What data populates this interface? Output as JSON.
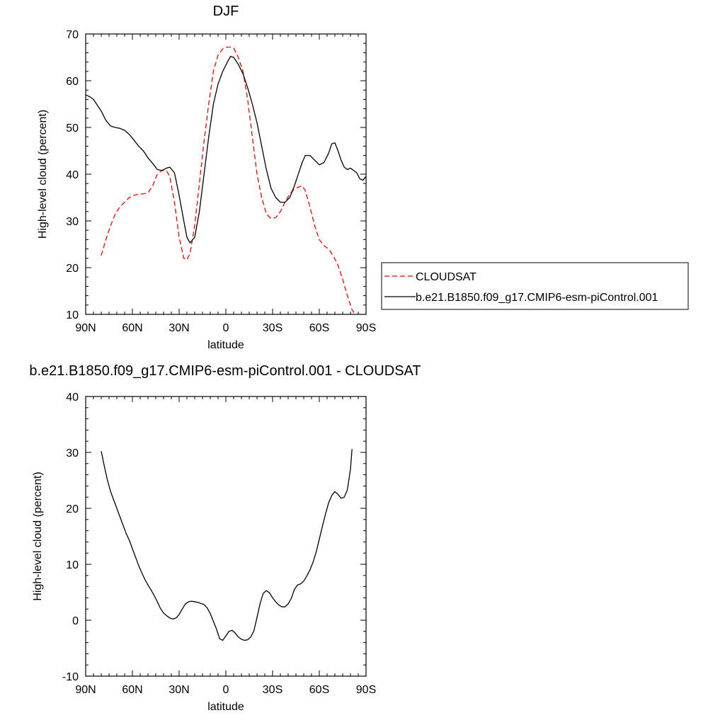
{
  "chart_data": [
    {
      "type": "line",
      "title": "DJF",
      "xlabel": "latitude",
      "ylabel": "High-level cloud (percent)",
      "xlim": [
        -90,
        90
      ],
      "ylim": [
        10,
        70
      ],
      "x_ticks": [
        {
          "value": -90,
          "label": "90N"
        },
        {
          "value": -60,
          "label": "60N"
        },
        {
          "value": -30,
          "label": "30N"
        },
        {
          "value": 0,
          "label": "0"
        },
        {
          "value": 30,
          "label": "30S"
        },
        {
          "value": 60,
          "label": "60S"
        },
        {
          "value": 90,
          "label": "90S"
        }
      ],
      "y_ticks": [
        10,
        20,
        30,
        40,
        50,
        60,
        70
      ],
      "legend": {
        "placement": "right"
      },
      "series": [
        {
          "name": "CLOUDSAT",
          "color": "#ff0000",
          "dash": "dashed",
          "x": [
            -80,
            -77,
            -74,
            -71,
            -68,
            -65,
            -62,
            -59,
            -56,
            -53,
            -50,
            -47,
            -44,
            -41,
            -38,
            -36,
            -33,
            -30,
            -27,
            -25,
            -23,
            -20,
            -17,
            -14,
            -11,
            -8,
            -5,
            -2,
            1,
            3,
            5,
            8,
            11,
            14,
            17,
            20,
            23,
            26,
            29,
            32,
            35,
            38,
            41,
            44,
            47,
            49,
            51,
            54,
            57,
            60,
            63,
            66,
            69,
            72,
            75,
            78,
            81,
            83
          ],
          "y": [
            22.6,
            26,
            29,
            31.5,
            33,
            34,
            35,
            35.5,
            35.7,
            35.8,
            36,
            37.5,
            40,
            40.8,
            40.7,
            39.5,
            34,
            26.5,
            22,
            21.7,
            23,
            29,
            38,
            47,
            55,
            62,
            65.5,
            66.8,
            67.2,
            67.2,
            67,
            65,
            62,
            56,
            48,
            40,
            35,
            31.5,
            30.5,
            30.7,
            32,
            34,
            35.8,
            36.8,
            37.3,
            37.5,
            36.5,
            33,
            29,
            26,
            24.7,
            24,
            22.5,
            20.5,
            17.5,
            14,
            11,
            10
          ]
        },
        {
          "name": "b.e21.B1850.f09_g17.CMIP6-esm-piControl.001",
          "color": "#000000",
          "dash": "solid",
          "x": [
            -90,
            -87,
            -85,
            -82,
            -80,
            -77,
            -74,
            -71,
            -68,
            -65,
            -62,
            -59,
            -56,
            -53,
            -50,
            -47,
            -44,
            -41,
            -38,
            -36,
            -33,
            -30,
            -27,
            -25,
            -23,
            -20,
            -17,
            -14,
            -11,
            -8,
            -5,
            -2,
            1,
            3,
            5,
            8,
            11,
            14,
            17,
            20,
            23,
            26,
            29,
            32,
            35,
            38,
            41,
            44,
            47,
            49,
            51,
            54,
            57,
            60,
            63,
            66,
            68,
            70,
            72,
            74,
            76,
            78,
            80,
            82,
            84,
            86,
            88,
            90
          ],
          "y": [
            57,
            56.5,
            56,
            54.5,
            53.5,
            51.5,
            50.3,
            50,
            49.8,
            49.4,
            48.5,
            47.3,
            46,
            45,
            43.5,
            42.3,
            41,
            40.8,
            41.3,
            41.5,
            40.3,
            35.5,
            30,
            26.5,
            25.3,
            26.5,
            32,
            40,
            48,
            55,
            59.3,
            62,
            64,
            65.2,
            65,
            63.5,
            61.5,
            58.5,
            55,
            51,
            46,
            41,
            37,
            35,
            34,
            34,
            35,
            37.5,
            40.5,
            42.5,
            44,
            44,
            43,
            42,
            42.5,
            44.5,
            46.5,
            46.7,
            45,
            43,
            41.5,
            41,
            41.3,
            40.8,
            40.3,
            39,
            38.7,
            39.5
          ]
        }
      ]
    },
    {
      "type": "line",
      "title": "b.e21.B1850.f09_g17.CMIP6-esm-piControl.001 - CLOUDSAT",
      "xlabel": "latitude",
      "ylabel": "High-level cloud (percent)",
      "xlim": [
        -90,
        90
      ],
      "ylim": [
        -10,
        40
      ],
      "x_ticks": [
        {
          "value": -90,
          "label": "90N"
        },
        {
          "value": -60,
          "label": "60N"
        },
        {
          "value": -30,
          "label": "30N"
        },
        {
          "value": 0,
          "label": "0"
        },
        {
          "value": 30,
          "label": "30S"
        },
        {
          "value": 60,
          "label": "60S"
        },
        {
          "value": 90,
          "label": "90S"
        }
      ],
      "y_ticks": [
        -10,
        0,
        10,
        20,
        30,
        40
      ],
      "series": [
        {
          "color": "#000000",
          "dash": "solid",
          "x": [
            -80,
            -78,
            -76,
            -74,
            -72,
            -70,
            -68,
            -66,
            -64,
            -62,
            -60,
            -58,
            -56,
            -54,
            -52,
            -50,
            -48,
            -46,
            -44,
            -42,
            -40,
            -38,
            -36,
            -34,
            -32,
            -30,
            -28,
            -26,
            -24,
            -22,
            -20,
            -18,
            -16,
            -14,
            -12,
            -10,
            -8,
            -6,
            -4,
            -2,
            0,
            2,
            4,
            6,
            8,
            10,
            12,
            14,
            16,
            18,
            20,
            22,
            24,
            26,
            28,
            30,
            32,
            34,
            36,
            38,
            40,
            42,
            44,
            46,
            48,
            50,
            52,
            54,
            56,
            58,
            60,
            62,
            64,
            66,
            68,
            70,
            72,
            74,
            76,
            78,
            80,
            81
          ],
          "y": [
            30.2,
            27.5,
            25,
            23,
            21.5,
            20,
            18.5,
            17,
            15.5,
            14.3,
            12.8,
            11.3,
            9.8,
            8.5,
            7.3,
            6.3,
            5.4,
            4.4,
            3.3,
            2.1,
            1.3,
            0.8,
            0.4,
            0.2,
            0.4,
            1,
            2,
            2.9,
            3.3,
            3.4,
            3.3,
            3.2,
            3,
            2.8,
            2.2,
            1.2,
            -0.2,
            -1.6,
            -3.3,
            -3.6,
            -2.8,
            -2,
            -1.8,
            -2.3,
            -3,
            -3.4,
            -3.6,
            -3.5,
            -3,
            -1.9,
            0.5,
            3,
            4.8,
            5.3,
            4.9,
            4,
            3.3,
            2.7,
            2.4,
            2.4,
            2.9,
            3.9,
            5.5,
            6.3,
            6.5,
            7,
            7.9,
            9,
            10.4,
            12.2,
            14.5,
            16.8,
            19,
            21,
            22.3,
            23,
            22.5,
            21.8,
            22,
            23.3,
            27,
            30.6
          ]
        }
      ]
    }
  ]
}
